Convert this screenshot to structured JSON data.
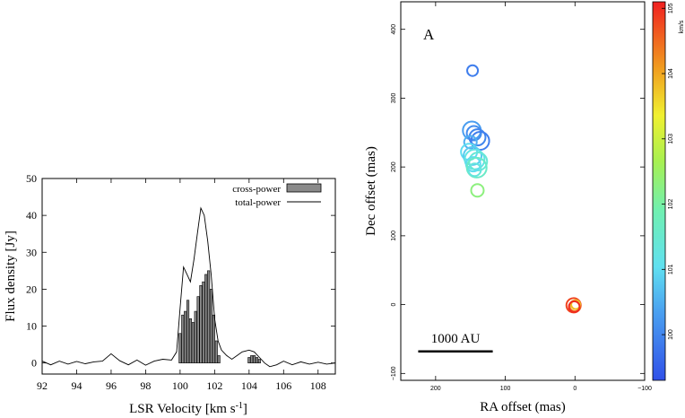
{
  "chart_data": [
    {
      "type": "bar",
      "name": "spectrum",
      "xlabel": "LSR Velocity",
      "xlabel_unit": "[km s",
      "xlabel_sup": "-1",
      "xlabel_close": "]",
      "ylabel": "Flux density [Jy]",
      "xlim": [
        92,
        109
      ],
      "ylim": [
        -3,
        50
      ],
      "xticks": [
        92,
        94,
        96,
        98,
        100,
        102,
        104,
        106,
        108
      ],
      "yticks": [
        0,
        10,
        20,
        30,
        40,
        50
      ],
      "legend": {
        "position": "top-right",
        "bar_label": "cross-power",
        "line_label": "total-power"
      },
      "cross_power": {
        "x": [
          100.0,
          100.15,
          100.3,
          100.45,
          100.6,
          100.75,
          100.9,
          101.05,
          101.2,
          101.35,
          101.5,
          101.65,
          101.8,
          101.95,
          102.1,
          102.25,
          104.0,
          104.15,
          104.3,
          104.45,
          104.6
        ],
        "y": [
          8,
          13,
          14,
          17,
          12,
          11,
          14,
          18,
          21,
          22,
          24,
          25,
          20,
          13,
          6,
          2,
          1.5,
          2,
          2,
          1.5,
          1
        ]
      },
      "total_power": {
        "x": [
          92,
          92.5,
          93,
          93.5,
          94,
          94.5,
          95,
          95.5,
          96,
          96.5,
          97,
          97.5,
          98,
          98.5,
          99,
          99.5,
          99.8,
          100.0,
          100.2,
          100.4,
          100.6,
          100.8,
          101.0,
          101.2,
          101.4,
          101.6,
          101.8,
          102.0,
          102.2,
          102.4,
          102.7,
          103.0,
          103.3,
          103.6,
          104.0,
          104.3,
          104.6,
          104.9,
          105.2,
          105.6,
          106.0,
          106.5,
          107,
          107.5,
          108,
          108.5,
          109
        ],
        "y": [
          0.5,
          -0.5,
          0.5,
          -0.3,
          0.4,
          -0.2,
          0.3,
          0.5,
          2.5,
          0.6,
          -0.5,
          0.8,
          -0.6,
          0.5,
          1.0,
          0.8,
          3.0,
          15,
          26,
          24,
          22,
          28,
          35,
          42,
          40,
          33,
          24,
          12,
          6,
          3.5,
          2,
          1,
          2,
          3,
          3.5,
          3,
          1.5,
          0,
          -1,
          -0.5,
          0.5,
          -0.5,
          0.3,
          -0.3,
          0.2,
          -0.3,
          0
        ]
      }
    },
    {
      "type": "scatter",
      "name": "maser-map",
      "panel_label": "A",
      "xlabel": "RA offset (mas)",
      "ylabel": "Dec offset (mas)",
      "xlim": [
        250,
        -100
      ],
      "ylim": [
        -110,
        440
      ],
      "xticks": [
        200,
        100,
        0,
        -100
      ],
      "yticks": [
        -100,
        0,
        100,
        200,
        300,
        400
      ],
      "scale_bar": {
        "label": "1000 AU",
        "x_from": 225,
        "x_to": 118,
        "y": -68
      },
      "colorbar": {
        "unit": "km/s",
        "min": 99.3,
        "max": 105.1,
        "ticks": [
          100,
          101,
          102,
          103,
          104,
          105
        ],
        "tick_labels": [
          "100",
          "101",
          "102",
          "103",
          "104",
          "105"
        ]
      },
      "points": [
        {
          "x": 147,
          "y": 340,
          "v": 99.9,
          "r": 6
        },
        {
          "x": 148,
          "y": 253,
          "v": 100.3,
          "r": 10
        },
        {
          "x": 145,
          "y": 249,
          "v": 100.1,
          "r": 8
        },
        {
          "x": 140,
          "y": 243,
          "v": 100.0,
          "r": 9
        },
        {
          "x": 136,
          "y": 238,
          "v": 99.9,
          "r": 10
        },
        {
          "x": 150,
          "y": 236,
          "v": 100.5,
          "r": 7
        },
        {
          "x": 152,
          "y": 222,
          "v": 101.0,
          "r": 9
        },
        {
          "x": 147,
          "y": 216,
          "v": 100.8,
          "r": 10
        },
        {
          "x": 144,
          "y": 211,
          "v": 101.2,
          "r": 11
        },
        {
          "x": 139,
          "y": 208,
          "v": 101.4,
          "r": 10
        },
        {
          "x": 146,
          "y": 204,
          "v": 101.0,
          "r": 8
        },
        {
          "x": 141,
          "y": 199,
          "v": 101.6,
          "r": 11
        },
        {
          "x": 144,
          "y": 196,
          "v": 101.3,
          "r": 7
        },
        {
          "x": 140,
          "y": 166,
          "v": 102.3,
          "r": 7
        },
        {
          "x": 2,
          "y": -1,
          "v": 104.8,
          "r": 8
        },
        {
          "x": 0,
          "y": -2,
          "v": 104.3,
          "r": 6
        },
        {
          "x": -1,
          "y": 0,
          "v": 103.8,
          "r": 5
        },
        {
          "x": 1,
          "y": -3,
          "v": 105.0,
          "r": 6
        }
      ]
    }
  ]
}
